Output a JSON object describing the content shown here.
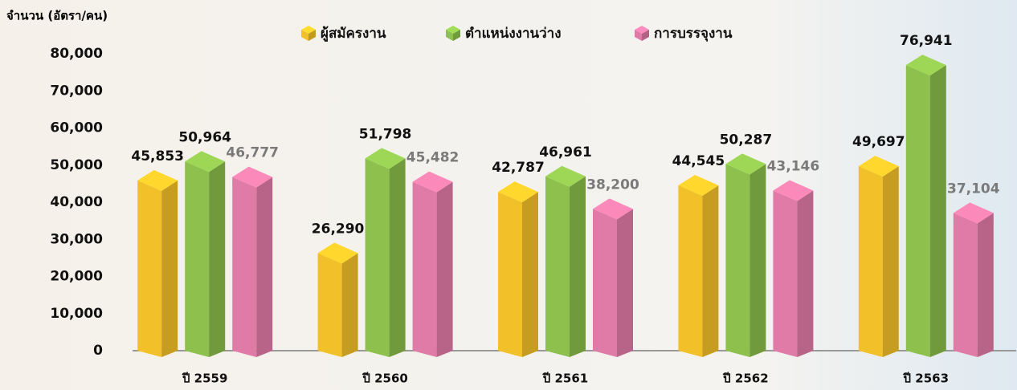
{
  "chart_data": {
    "type": "bar",
    "y_label": "จำนวน (อัตรา/คน)",
    "categories": [
      "ปี 2559",
      "ปี 2560",
      "ปี 2561",
      "ปี 2562",
      "ปี 2563"
    ],
    "series": [
      {
        "name": "ผู้สมัครงาน",
        "color": "#f2c028",
        "values": [
          45853,
          26290,
          42787,
          44545,
          49697
        ],
        "value_labels": [
          "45,853",
          "26,290",
          "42,787",
          "44,545",
          "49,697"
        ]
      },
      {
        "name": "ตำแหน่งงานว่าง",
        "color": "#8dc04c",
        "values": [
          50964,
          51798,
          46961,
          50287,
          76941
        ],
        "value_labels": [
          "50,964",
          "51,798",
          "46,961",
          "50,287",
          "76,941"
        ]
      },
      {
        "name": "การบรรจุงาน",
        "color": "#e07aa6",
        "values": [
          46777,
          45482,
          38200,
          43146,
          37104
        ],
        "value_labels": [
          "46,777",
          "45,482",
          "38,200",
          "43,146",
          "37,104"
        ]
      }
    ],
    "ylim": [
      0,
      80000
    ],
    "yticks": [
      0,
      {
        "value": 10000,
        "label": "10,000"
      },
      {
        "value": 20000,
        "label": "20,000"
      },
      {
        "value": 30000,
        "label": "30,000"
      },
      {
        "value": 40000,
        "label": "40,000"
      },
      {
        "value": 50000,
        "label": "50,000"
      },
      {
        "value": 60000,
        "label": "60,000"
      },
      {
        "value": 70000,
        "label": "70,000"
      },
      {
        "value": 80000,
        "label": "80,000"
      }
    ],
    "legend": "top"
  }
}
